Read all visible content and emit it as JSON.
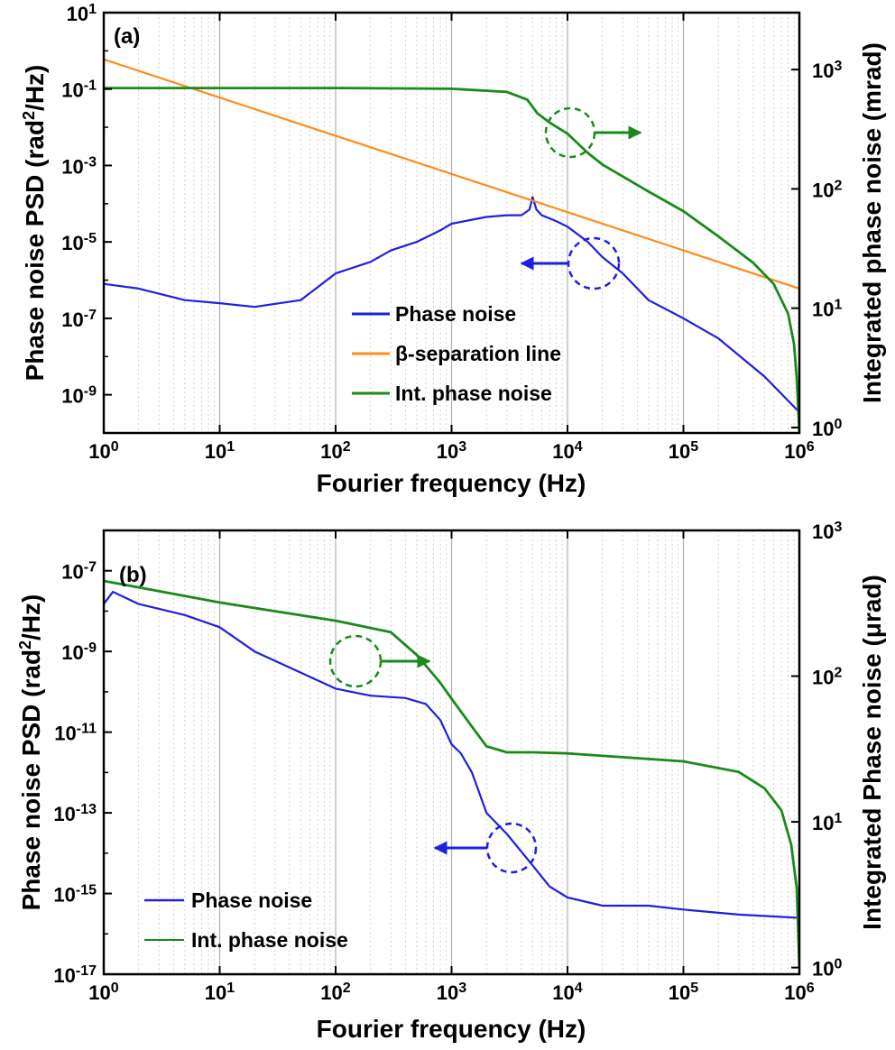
{
  "chart_data": [
    {
      "panel": "(a)",
      "type": "line",
      "xlabel": "Fourier frequency (Hz)",
      "xscale": "log",
      "xlim": [
        1,
        1000000
      ],
      "x_ticks": [
        {
          "base": "10",
          "exp": "0"
        },
        {
          "base": "10",
          "exp": "1"
        },
        {
          "base": "10",
          "exp": "2"
        },
        {
          "base": "10",
          "exp": "3"
        },
        {
          "base": "10",
          "exp": "4"
        },
        {
          "base": "10",
          "exp": "5"
        },
        {
          "base": "10",
          "exp": "6"
        }
      ],
      "ylabel_left": {
        "pre": "Phase noise PSD (rad",
        "sup": "2",
        "post": "/Hz)"
      },
      "yscale_left": "log",
      "ylim_left": [
        1e-10,
        10
      ],
      "y_ticks_left": [
        {
          "base": "10",
          "exp": "1"
        },
        {
          "base": "10",
          "exp": "-1"
        },
        {
          "base": "10",
          "exp": "-3"
        },
        {
          "base": "10",
          "exp": "-5"
        },
        {
          "base": "10",
          "exp": "-7"
        },
        {
          "base": "10",
          "exp": "-9"
        }
      ],
      "ylabel_right": "Integrated phase noise (mrad)",
      "yscale_right": "log",
      "ylim_right": [
        0.9,
        3000
      ],
      "y_ticks_right": [
        {
          "base": "10",
          "exp": "3"
        },
        {
          "base": "10",
          "exp": "2"
        },
        {
          "base": "10",
          "exp": "1"
        },
        {
          "base": "10",
          "exp": "0"
        }
      ],
      "grid": "vertical",
      "legend_position": "center-bottom",
      "series": [
        {
          "name": "Phase noise",
          "axis": "left",
          "color": "#1f1fe0",
          "x": [
            1,
            2,
            5,
            10,
            20,
            50,
            100,
            200,
            300,
            500,
            800,
            1000,
            2000,
            3000,
            4000,
            4700,
            5000,
            5400,
            6000,
            8000,
            10000,
            15000,
            20000,
            30000,
            50000,
            100000,
            200000,
            500000,
            1000000
          ],
          "y": [
            8e-07,
            6e-07,
            3e-07,
            2.5e-07,
            2e-07,
            3e-07,
            1.5e-06,
            3e-06,
            6e-06,
            1e-05,
            2e-05,
            3e-05,
            4.5e-05,
            5e-05,
            5e-05,
            7e-05,
            0.00015,
            7e-05,
            5e-05,
            3.5e-05,
            2.5e-05,
            1e-05,
            4e-06,
            1.5e-06,
            3e-07,
            1e-07,
            3e-08,
            3e-09,
            3.5e-10
          ]
        },
        {
          "name": "β-separation line",
          "axis": "left",
          "color": "#ff8c1a",
          "x": [
            1,
            1000000
          ],
          "y": [
            0.6,
            6e-07
          ]
        },
        {
          "name": "Int. phase noise",
          "axis": "right",
          "color": "#1a8a1a",
          "x": [
            1,
            100,
            1000,
            3000,
            4500,
            5500,
            7000,
            10000,
            15000,
            20000,
            50000,
            100000,
            200000,
            400000,
            600000,
            800000,
            900000,
            950000,
            1000000
          ],
          "y": [
            700,
            700,
            690,
            650,
            560,
            430,
            360,
            290,
            200,
            160,
            95,
            65,
            40,
            24,
            16,
            9,
            5,
            2.6,
            0.9
          ]
        }
      ],
      "annotations": [
        "dashed circle with arrow pointing right to integrated axis",
        "dashed circle with arrow pointing left to PSD axis"
      ]
    },
    {
      "panel": "(b)",
      "type": "line",
      "xlabel": "Fourier frequency (Hz)",
      "xscale": "log",
      "xlim": [
        1,
        1000000
      ],
      "x_ticks": [
        {
          "base": "10",
          "exp": "0"
        },
        {
          "base": "10",
          "exp": "1"
        },
        {
          "base": "10",
          "exp": "2"
        },
        {
          "base": "10",
          "exp": "3"
        },
        {
          "base": "10",
          "exp": "4"
        },
        {
          "base": "10",
          "exp": "5"
        },
        {
          "base": "10",
          "exp": "6"
        }
      ],
      "ylabel_left": {
        "pre": "Phase noise PSD (rad",
        "sup": "2",
        "post": "/Hz)"
      },
      "yscale_left": "log",
      "ylim_left": [
        1e-17,
        1e-06
      ],
      "y_ticks_left": [
        {
          "base": "10",
          "exp": "-7"
        },
        {
          "base": "10",
          "exp": "-9"
        },
        {
          "base": "10",
          "exp": "-11"
        },
        {
          "base": "10",
          "exp": "-13"
        },
        {
          "base": "10",
          "exp": "-15"
        },
        {
          "base": "10",
          "exp": "-17"
        }
      ],
      "ylabel_right": "Integrated Phase noise (μrad)",
      "yscale_right": "log",
      "ylim_right": [
        0.9,
        1000
      ],
      "y_ticks_right": [
        {
          "base": "10",
          "exp": "3"
        },
        {
          "base": "10",
          "exp": "2"
        },
        {
          "base": "10",
          "exp": "1"
        },
        {
          "base": "10",
          "exp": "0"
        }
      ],
      "grid": "vertical",
      "legend_position": "bottom-left",
      "series": [
        {
          "name": "Phase noise",
          "axis": "left",
          "color": "#1f1fe0",
          "x": [
            1,
            1.2,
            2,
            5,
            10,
            20,
            50,
            100,
            200,
            400,
            600,
            800,
            1000,
            1200,
            1500,
            2000,
            3000,
            5000,
            7000,
            10000,
            20000,
            50000,
            100000,
            300000,
            1000000
          ],
          "y": [
            1.5e-08,
            3e-08,
            1.5e-08,
            8e-09,
            4e-09,
            1e-09,
            3e-10,
            1.2e-10,
            8e-11,
            7e-11,
            5e-11,
            2e-11,
            5e-12,
            3e-12,
            1e-12,
            1e-13,
            3e-14,
            5e-15,
            1.5e-15,
            8e-16,
            5e-16,
            5e-16,
            4e-16,
            3e-16,
            2.5e-16
          ]
        },
        {
          "name": "Int. phase noise",
          "axis": "right",
          "color": "#1a8a1a",
          "x": [
            1,
            10,
            100,
            300,
            500,
            800,
            1000,
            1500,
            2000,
            3000,
            5000,
            10000,
            100000,
            300000,
            500000,
            700000,
            850000,
            950000,
            1000000
          ],
          "y": [
            450,
            320,
            240,
            200,
            140,
            90,
            70,
            45,
            33,
            30,
            30,
            29.5,
            26,
            22,
            17,
            12,
            7,
            3.5,
            1
          ]
        }
      ],
      "annotations": [
        "dashed circle with arrow pointing right to integrated axis",
        "dashed circle with arrow pointing left to PSD axis"
      ]
    }
  ]
}
